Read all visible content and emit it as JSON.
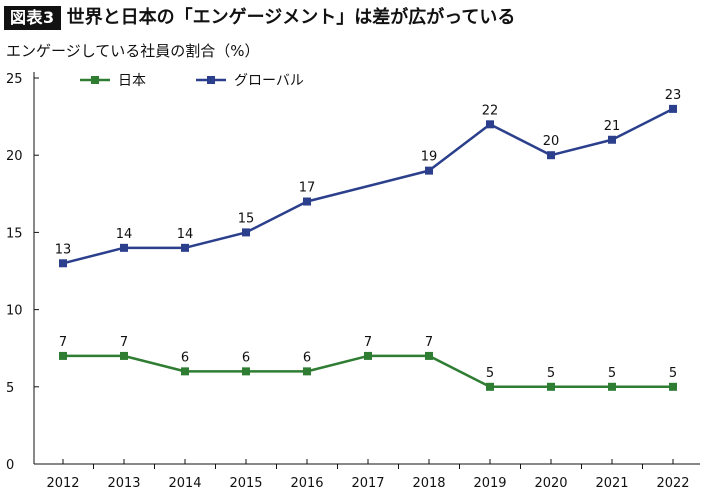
{
  "header": {
    "tag": "図表3",
    "title": "世界と日本の「エンゲージメント」は差が広がっている"
  },
  "chart_data": {
    "type": "line",
    "title": "世界と日本の「エンゲージメント」は差が広がっている",
    "ylabel": "エンゲージしている社員の割合（%）",
    "xlabel": "",
    "ylim": [
      0,
      25
    ],
    "yticks": [
      0,
      5,
      10,
      15,
      20,
      25
    ],
    "categories": [
      "2012",
      "2013",
      "2014",
      "2015",
      "2016",
      "2017",
      "2018",
      "2019",
      "2020",
      "2021",
      "2022"
    ],
    "legend_position": "top-left",
    "grid": false,
    "series": [
      {
        "name": "日本",
        "color": "#2e7d32",
        "values": [
          7,
          7,
          6,
          6,
          6,
          7,
          7,
          5,
          5,
          5,
          5
        ],
        "labels": [
          "7",
          "7",
          "6",
          "6",
          "6",
          "7",
          "7",
          "5",
          "5",
          "5",
          "5"
        ]
      },
      {
        "name": "グローバル",
        "color": "#2b3f8c",
        "values": [
          13,
          14,
          14,
          15,
          17,
          null,
          19,
          22,
          20,
          21,
          23
        ],
        "labels": [
          "13",
          "14",
          "14",
          "15",
          "17",
          null,
          "19",
          "22",
          "20",
          "21",
          "23"
        ]
      }
    ]
  }
}
